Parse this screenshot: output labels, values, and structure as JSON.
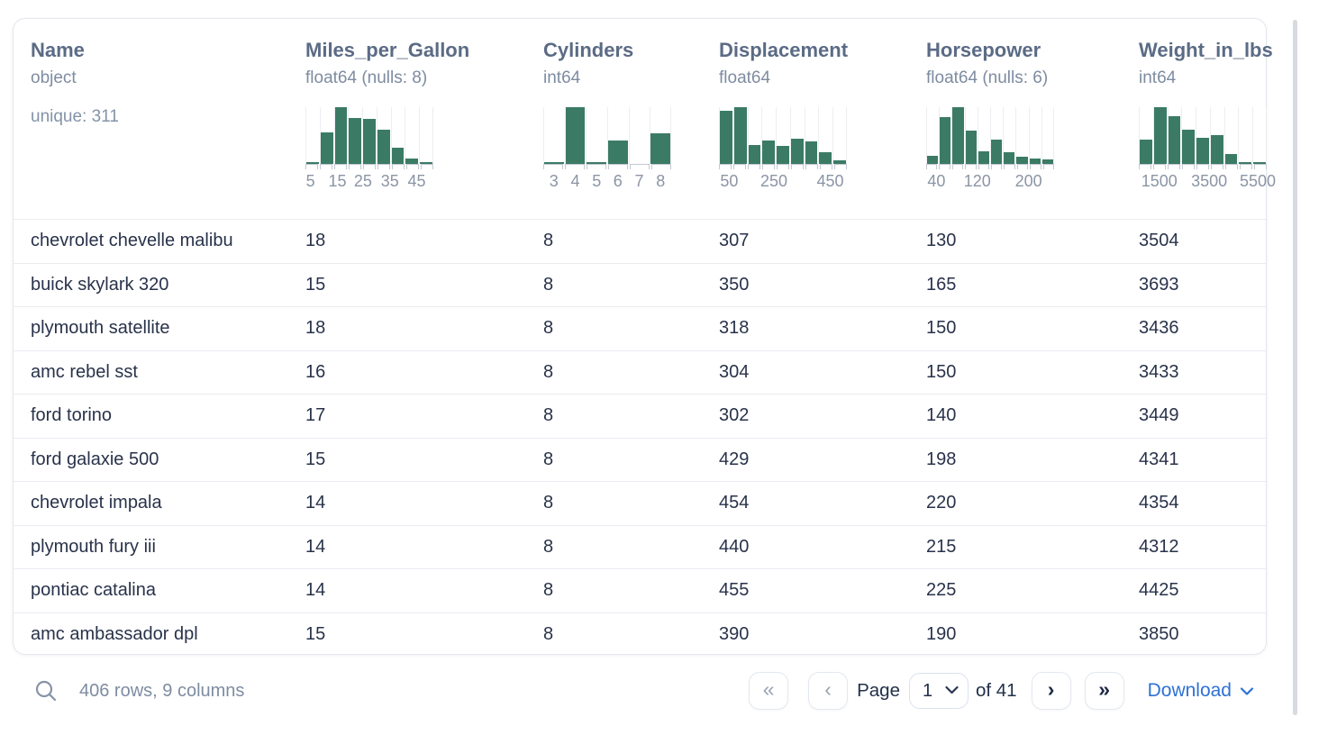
{
  "table": {
    "columns": [
      {
        "name": "Name",
        "dtype": "object",
        "extra": "unique: 311",
        "histogram": null
      },
      {
        "name": "Miles_per_Gallon",
        "dtype": "float64 (nulls: 8)",
        "extra": null,
        "histogram": {
          "bins": [
            0.03,
            0.56,
            1.0,
            0.81,
            0.79,
            0.6,
            0.28,
            0.1,
            0.03
          ],
          "ticks": [
            {
              "label": "5",
              "pos": 0.04
            },
            {
              "label": "15",
              "pos": 0.25
            },
            {
              "label": "25",
              "pos": 0.45
            },
            {
              "label": "35",
              "pos": 0.66
            },
            {
              "label": "45",
              "pos": 0.87
            }
          ]
        }
      },
      {
        "name": "Cylinders",
        "dtype": "int64",
        "extra": null,
        "histogram": {
          "bins": [
            0.03,
            1.0,
            0.03,
            0.42,
            0.0,
            0.54
          ],
          "ticks": [
            {
              "label": "3",
              "pos": 0.083
            },
            {
              "label": "4",
              "pos": 0.25
            },
            {
              "label": "5",
              "pos": 0.417
            },
            {
              "label": "6",
              "pos": 0.583
            },
            {
              "label": "7",
              "pos": 0.75
            },
            {
              "label": "8",
              "pos": 0.917
            }
          ]
        }
      },
      {
        "name": "Displacement",
        "dtype": "float64",
        "extra": null,
        "histogram": {
          "bins": [
            0.93,
            1.0,
            0.34,
            0.42,
            0.31,
            0.44,
            0.39,
            0.2,
            0.07
          ],
          "ticks": [
            {
              "label": "50",
              "pos": 0.08
            },
            {
              "label": "250",
              "pos": 0.43
            },
            {
              "label": "450",
              "pos": 0.87
            }
          ]
        }
      },
      {
        "name": "Horsepower",
        "dtype": "float64 (nulls: 6)",
        "extra": null,
        "histogram": {
          "bins": [
            0.15,
            0.82,
            1.0,
            0.58,
            0.23,
            0.43,
            0.2,
            0.13,
            0.1,
            0.08
          ],
          "ticks": [
            {
              "label": "40",
              "pos": 0.08
            },
            {
              "label": "120",
              "pos": 0.4
            },
            {
              "label": "200",
              "pos": 0.8
            }
          ]
        }
      },
      {
        "name": "Weight_in_lbs",
        "dtype": "int64",
        "extra": null,
        "histogram": {
          "bins": [
            0.43,
            1.0,
            0.84,
            0.6,
            0.46,
            0.5,
            0.17,
            0.03,
            0.02
          ],
          "ticks": [
            {
              "label": "1500",
              "pos": 0.16
            },
            {
              "label": "3500",
              "pos": 0.55
            },
            {
              "label": "5500",
              "pos": 0.93
            }
          ]
        }
      }
    ],
    "rows": [
      [
        "chevrolet chevelle malibu",
        "18",
        "8",
        "307",
        "130",
        "3504"
      ],
      [
        "buick skylark 320",
        "15",
        "8",
        "350",
        "165",
        "3693"
      ],
      [
        "plymouth satellite",
        "18",
        "8",
        "318",
        "150",
        "3436"
      ],
      [
        "amc rebel sst",
        "16",
        "8",
        "304",
        "150",
        "3433"
      ],
      [
        "ford torino",
        "17",
        "8",
        "302",
        "140",
        "3449"
      ],
      [
        "ford galaxie 500",
        "15",
        "8",
        "429",
        "198",
        "4341"
      ],
      [
        "chevrolet impala",
        "14",
        "8",
        "454",
        "220",
        "4354"
      ],
      [
        "plymouth fury iii",
        "14",
        "8",
        "440",
        "215",
        "4312"
      ],
      [
        "pontiac catalina",
        "14",
        "8",
        "455",
        "225",
        "4425"
      ],
      [
        "amc ambassador dpl",
        "15",
        "8",
        "390",
        "190",
        "3850"
      ]
    ]
  },
  "footer": {
    "summary": "406 rows, 9 columns",
    "pagination": {
      "first_glyph": "«",
      "prev_glyph": "‹",
      "page_label": "Page",
      "current_page": "1",
      "of_label": "of 41",
      "next_glyph": "›",
      "last_glyph": "»"
    },
    "download_label": "Download"
  },
  "colors": {
    "bar_green": "#3b7b65",
    "accent_blue": "#2e71d4",
    "header_slate": "#5b6b85",
    "muted_gray": "#7e8ca1",
    "row_text": "#28324a"
  }
}
